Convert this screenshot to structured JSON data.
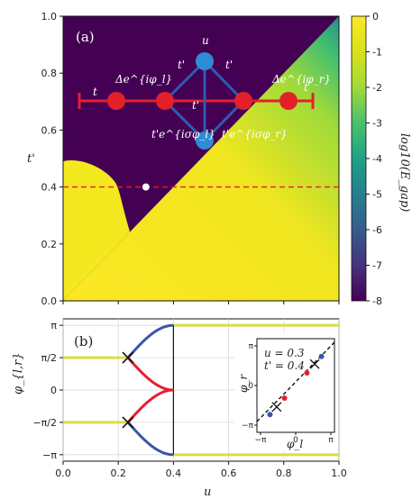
{
  "chart_data": [
    {
      "type": "heatmap",
      "panel_label": "(a)",
      "xlim": [
        0.0,
        1.0
      ],
      "ylim": [
        0.0,
        1.0
      ],
      "ylabel": "t'",
      "xticks": [
        "0.0",
        "0.2",
        "0.4",
        "0.6",
        "0.8",
        "1.0"
      ],
      "yticks": [
        "0.0",
        "0.2",
        "0.4",
        "0.6",
        "0.8",
        "1.0"
      ],
      "colorbar": {
        "label": "log10(E_gap)",
        "range": [
          -8,
          0
        ],
        "ticks": [
          "0",
          "-1",
          "-2",
          "-3",
          "-4",
          "-5",
          "-6",
          "-7",
          "-8"
        ]
      },
      "cut_line_y": 0.4,
      "marked_point": [
        0.3,
        0.4
      ],
      "diagram_labels": {
        "u": "u",
        "t_left": "t",
        "t_right": "t",
        "delta_left": "Δe^{iφ_l}",
        "delta_right": "Δe^{iφ_r}",
        "tp_top_left": "t'",
        "tp_top_right": "t'",
        "tp_mid": "t'",
        "tp_bottom_left": "t'e^{iσφ_l}",
        "tp_bottom_right": "t'e^{iσφ_r}"
      }
    },
    {
      "type": "line",
      "panel_label": "(b)",
      "xlabel": "u",
      "ylabel": "φ_{l,r}",
      "xlim": [
        0.0,
        1.0
      ],
      "xticks": [
        "0.0",
        "0.2",
        "0.4",
        "0.6",
        "0.8",
        "1.0"
      ],
      "yticks": [
        "−π",
        "−π/2",
        "0",
        "π/2",
        "π"
      ],
      "crossings": [
        [
          0.235,
          1.5708
        ],
        [
          0.235,
          -1.5708
        ]
      ],
      "inset": {
        "xlabel": "φ_l",
        "ylabel": "φ_r",
        "xticks": [
          "−π",
          "0",
          "π"
        ],
        "yticks": [
          "π",
          "0",
          "−π"
        ],
        "text_u": "u = 0.3",
        "text_t": "t' = 0.4"
      }
    }
  ]
}
